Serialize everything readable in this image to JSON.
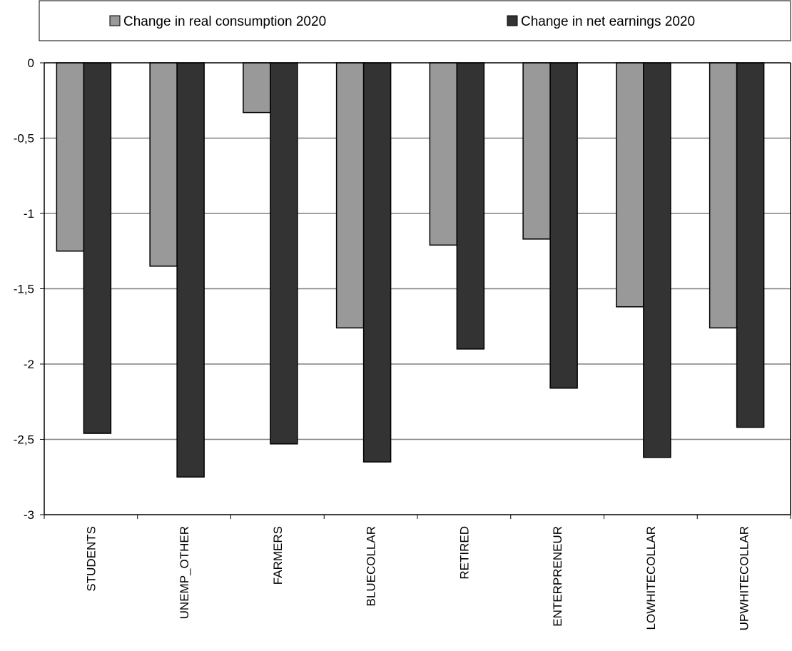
{
  "chart_data": {
    "type": "bar",
    "categories": [
      "STUDENTS",
      "UNEMP_OTHER",
      "FARMERS",
      "BLUECOLLAR",
      "RETIRED",
      "ENTERPRENEUR",
      "LOWHITECOLLAR",
      "UPWHITECOLLAR"
    ],
    "series": [
      {
        "name": "Change in real consumption 2020",
        "color": "#999999",
        "values": [
          -1.25,
          -1.35,
          -0.33,
          -1.76,
          -1.21,
          -1.17,
          -1.62,
          -1.76
        ]
      },
      {
        "name": "Change in net earnings 2020",
        "color": "#333333",
        "values": [
          -2.46,
          -2.75,
          -2.53,
          -2.65,
          -1.9,
          -2.16,
          -2.62,
          -2.42
        ]
      }
    ],
    "yticks": [
      "0",
      "-0,5",
      "-1",
      "-1,5",
      "-2",
      "-2,5",
      "-3"
    ],
    "ylim": [
      -3,
      0
    ],
    "grid": true,
    "legend_position": "top",
    "title": "",
    "xlabel": "",
    "ylabel": ""
  }
}
